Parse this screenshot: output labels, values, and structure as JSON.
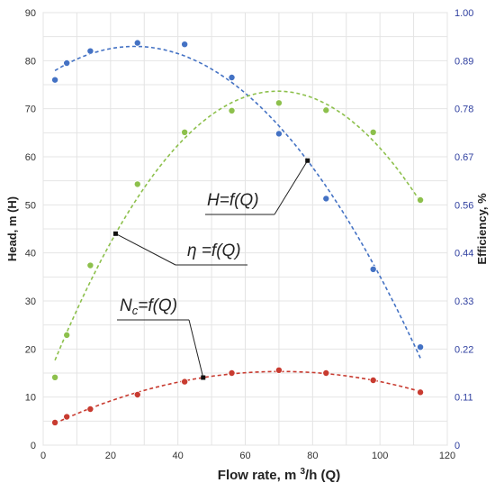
{
  "chart_data": {
    "type": "scatter",
    "x": [
      3.5,
      7,
      14,
      28,
      42,
      56,
      70,
      84,
      98,
      112
    ],
    "xlabel": "Flow rate, m3/h (Q)",
    "ylabel_left": "Head, m (H)",
    "ylabel_right": "Efficiency, %",
    "xlim": [
      0,
      120
    ],
    "ylim_left": [
      0,
      90
    ],
    "ylim_right": [
      0,
      1.0
    ],
    "x_ticks": [
      0,
      20,
      40,
      60,
      80,
      100,
      120
    ],
    "y_left_ticks": [
      0,
      10,
      20,
      30,
      40,
      50,
      60,
      70,
      80,
      90
    ],
    "y_right_ticks": [
      "0",
      "0.11",
      "0.22",
      "0.33",
      "0.44",
      "0.56",
      "0.67",
      "0.78",
      "0.89",
      "1.00"
    ],
    "grid": true,
    "series": [
      {
        "name": "H=f(Q)",
        "axis": "left",
        "color": "#4472c4",
        "y": [
          76,
          79.5,
          82,
          83.7,
          83.4,
          76.5,
          64.8,
          51.3,
          36.6,
          20.4
        ]
      },
      {
        "name": "η =f(Q)",
        "axis": "left",
        "color": "#8dc04c",
        "y": [
          14.1,
          22.9,
          37.4,
          54.3,
          65.1,
          69.6,
          71.2,
          69.7,
          65.1,
          51
        ]
      },
      {
        "name": "N_c=f(Q)",
        "axis": "left",
        "color": "#c83b30",
        "y": [
          4.7,
          5.9,
          7.5,
          10.5,
          13.2,
          15,
          15.6,
          15,
          13.5,
          11
        ]
      }
    ],
    "annotations": [
      {
        "text": "H=f(Q)",
        "target_series": 0,
        "target_x": 78.5
      },
      {
        "text": "η =f(Q)",
        "target_series": 1,
        "target_x": 21.5
      },
      {
        "text": "N",
        "subscript": "c",
        "suffix": "=f(Q)",
        "target_series": 2,
        "target_x": 47.5
      }
    ]
  }
}
